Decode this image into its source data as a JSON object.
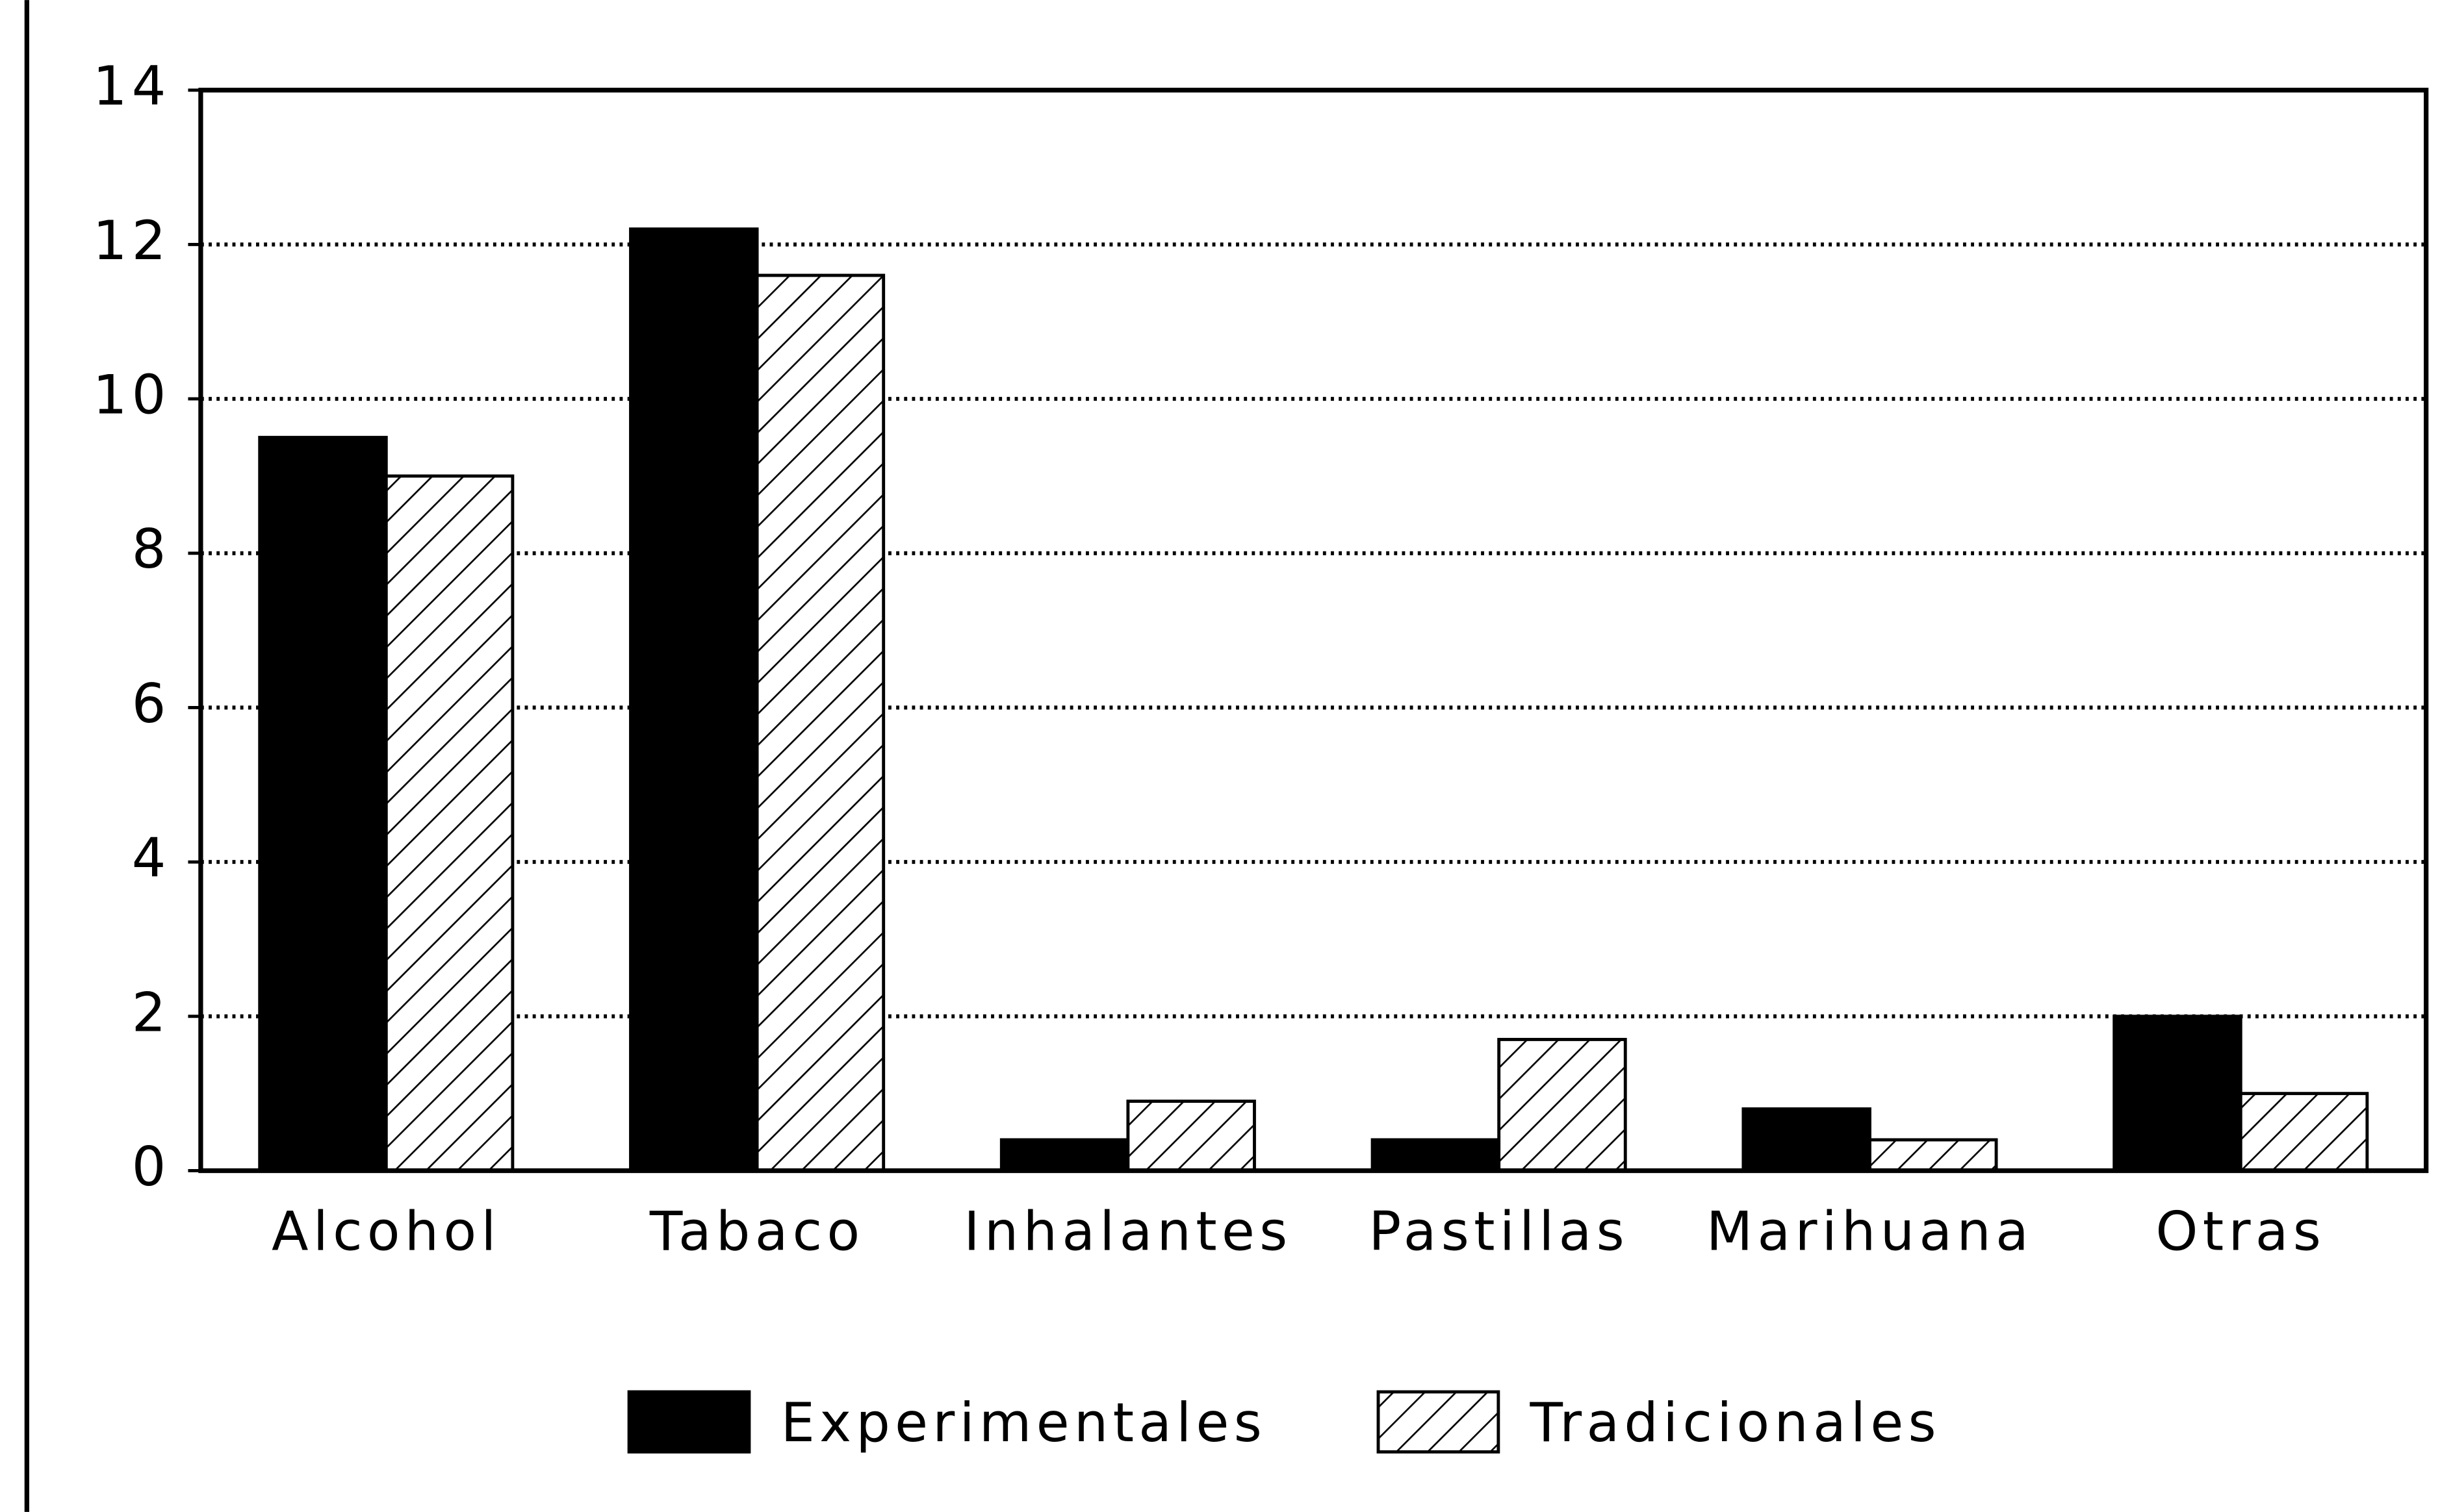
{
  "chart_data": {
    "type": "bar",
    "categories": [
      "Alcohol",
      "Tabaco",
      "Inhalantes",
      "Pastillas",
      "Marihuana",
      "Otras"
    ],
    "series": [
      {
        "name": "Experimentales",
        "color": "#000000",
        "fill": "solid",
        "values": [
          9.5,
          12.2,
          0.4,
          0.4,
          0.8,
          2.0
        ]
      },
      {
        "name": "Tradicionales",
        "color": "#000000",
        "fill": "hatch",
        "values": [
          9.0,
          11.6,
          0.9,
          1.7,
          0.4,
          1.0
        ]
      }
    ],
    "ylim": [
      0,
      14
    ],
    "yticks": [
      0,
      2,
      4,
      6,
      8,
      10,
      12,
      14
    ],
    "grid": true,
    "legend": "bottom"
  }
}
